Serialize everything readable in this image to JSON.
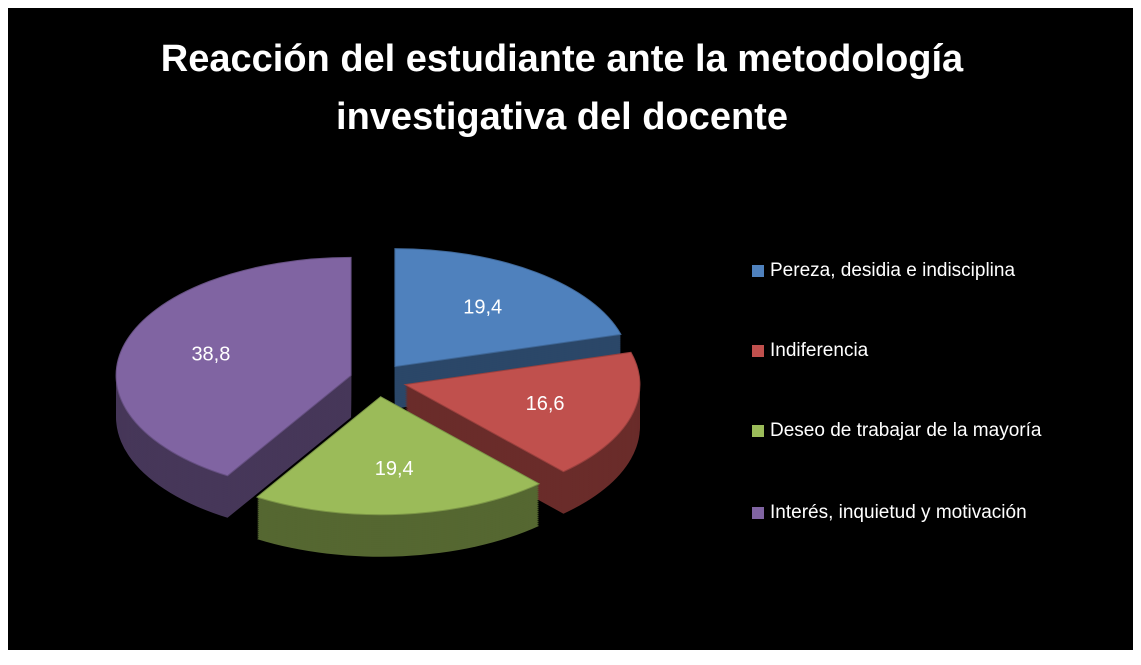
{
  "chart_data": {
    "type": "pie",
    "title": "Reacción del estudiante ante la metodología investigativa del docente",
    "categories": [
      "Pereza, desidia e indisciplina",
      "Indiferencia",
      "Deseo de trabajar de la mayoría",
      "Interés, inquietud y motivación"
    ],
    "values": [
      19.4,
      16.6,
      19.4,
      38.8
    ],
    "value_labels": [
      "19,4",
      "16,6",
      "19,4",
      "38,8"
    ],
    "colors": [
      "#4f81bd",
      "#c0504d",
      "#9bbb59",
      "#8064a2"
    ],
    "legend": "right"
  }
}
